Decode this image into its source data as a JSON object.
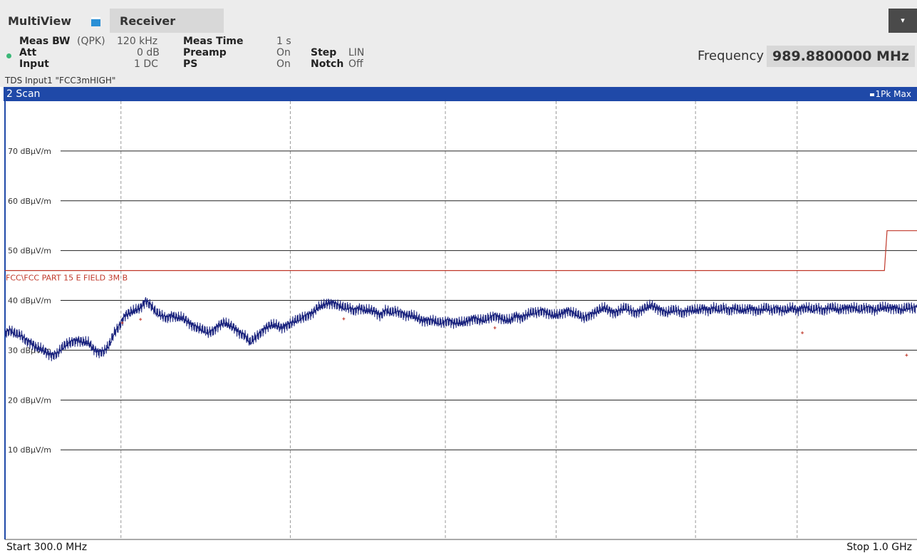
{
  "header": {
    "app_title": "MultiView",
    "tab_label": "Receiver",
    "dropdown_glyph": "▾"
  },
  "params": {
    "meas_bw_label": "Meas BW",
    "meas_bw_mode": "(QPK)",
    "meas_bw_value": "120 kHz",
    "meas_time_label": "Meas Time",
    "meas_time_value": "1 s",
    "att_label": "Att",
    "att_value": "0 dB",
    "preamp_label": "Preamp",
    "preamp_value": "On",
    "step_label": "Step",
    "step_value": "LIN",
    "input_label": "Input",
    "input_value": "1 DC",
    "ps_label": "PS",
    "ps_value": "On",
    "notch_label": "Notch",
    "notch_value": "Off",
    "tds_text": "TDS Input1 \"FCC3mHIGH\""
  },
  "frequency": {
    "label": "Frequency",
    "value": "989.8800000 MHz"
  },
  "window": {
    "title": "2 Scan",
    "trace_legend": "1Pk Max"
  },
  "colors": {
    "trace": "#1a237e",
    "limit_line": "#c0392b",
    "marker": "#c0392b",
    "window_header": "#1f49a8",
    "status_dot": "#3cb878"
  },
  "chart_data": {
    "type": "line",
    "y_unit": "dBµV/m",
    "ylim": [
      -8,
      80
    ],
    "xlim": [
      300,
      1000
    ],
    "y_ticks": [
      {
        "value": 70,
        "label": "70 dBµV/m"
      },
      {
        "value": 60,
        "label": "60 dBµV/m"
      },
      {
        "value": 50,
        "label": "50 dBµV/m"
      },
      {
        "value": 40,
        "label": "40 dBµV/m"
      },
      {
        "value": 30,
        "label": "30 dBµV/m"
      },
      {
        "value": 20,
        "label": "20 dBµV/m"
      },
      {
        "value": 10,
        "label": "10 dBµV/m"
      }
    ],
    "x_start_label": "Start 300.0 MHz",
    "x_stop_label": "Stop 1.0 GHz",
    "grid": true,
    "limit_line": {
      "name": "FCC\\FCC PART 15 E FIELD 3M B",
      "points": [
        [
          300,
          46
        ],
        [
          975,
          46
        ],
        [
          977,
          54
        ],
        [
          1000,
          54
        ]
      ]
    },
    "series": [
      {
        "trace": [
          [
            300,
            33.5
          ],
          [
            304,
            34.0
          ],
          [
            308,
            33.2
          ],
          [
            312,
            33.0
          ],
          [
            316,
            32.0
          ],
          [
            320,
            31.5
          ],
          [
            324,
            30.5
          ],
          [
            328,
            30.2
          ],
          [
            332,
            29.5
          ],
          [
            336,
            29.0
          ],
          [
            340,
            29.3
          ],
          [
            344,
            30.5
          ],
          [
            348,
            31.3
          ],
          [
            352,
            31.8
          ],
          [
            356,
            32.0
          ],
          [
            360,
            31.6
          ],
          [
            364,
            31.5
          ],
          [
            368,
            30.2
          ],
          [
            372,
            29.6
          ],
          [
            376,
            29.8
          ],
          [
            380,
            31.0
          ],
          [
            384,
            33.5
          ],
          [
            388,
            35.0
          ],
          [
            392,
            37.0
          ],
          [
            396,
            37.5
          ],
          [
            400,
            38.0
          ],
          [
            404,
            38.5
          ],
          [
            408,
            40.0
          ],
          [
            412,
            39.0
          ],
          [
            416,
            37.5
          ],
          [
            420,
            37.0
          ],
          [
            424,
            36.5
          ],
          [
            428,
            37.0
          ],
          [
            432,
            36.5
          ],
          [
            436,
            36.5
          ],
          [
            440,
            35.8
          ],
          [
            444,
            35.0
          ],
          [
            448,
            34.5
          ],
          [
            452,
            34.0
          ],
          [
            456,
            33.5
          ],
          [
            460,
            34.0
          ],
          [
            464,
            35.0
          ],
          [
            468,
            35.5
          ],
          [
            472,
            35.0
          ],
          [
            476,
            34.5
          ],
          [
            480,
            33.5
          ],
          [
            484,
            33.0
          ],
          [
            488,
            31.5
          ],
          [
            492,
            32.5
          ],
          [
            496,
            33.5
          ],
          [
            500,
            34.5
          ],
          [
            504,
            35.0
          ],
          [
            508,
            35.0
          ],
          [
            512,
            34.5
          ],
          [
            516,
            35.0
          ],
          [
            520,
            35.5
          ],
          [
            524,
            36.0
          ],
          [
            528,
            36.5
          ],
          [
            532,
            37.0
          ],
          [
            536,
            37.5
          ],
          [
            540,
            38.5
          ],
          [
            544,
            39.0
          ],
          [
            548,
            39.5
          ],
          [
            552,
            39.5
          ],
          [
            556,
            39.0
          ],
          [
            560,
            38.5
          ],
          [
            564,
            38.5
          ],
          [
            568,
            38.0
          ],
          [
            572,
            38.5
          ],
          [
            576,
            38.0
          ],
          [
            580,
            38.0
          ],
          [
            584,
            37.8
          ],
          [
            588,
            37.0
          ],
          [
            592,
            38.0
          ],
          [
            596,
            37.5
          ],
          [
            600,
            37.8
          ],
          [
            604,
            37.5
          ],
          [
            608,
            37.0
          ],
          [
            612,
            37.0
          ],
          [
            616,
            36.5
          ],
          [
            620,
            36.0
          ],
          [
            624,
            36.0
          ],
          [
            628,
            36.0
          ],
          [
            632,
            35.5
          ],
          [
            636,
            35.5
          ],
          [
            640,
            36.0
          ],
          [
            644,
            35.5
          ],
          [
            648,
            35.5
          ],
          [
            652,
            35.5
          ],
          [
            656,
            36.0
          ],
          [
            660,
            36.5
          ],
          [
            664,
            36.0
          ],
          [
            668,
            36.0
          ],
          [
            672,
            36.5
          ],
          [
            676,
            37.0
          ],
          [
            680,
            36.5
          ],
          [
            684,
            36.0
          ],
          [
            688,
            36.0
          ],
          [
            692,
            37.0
          ],
          [
            696,
            36.5
          ],
          [
            700,
            37.0
          ],
          [
            704,
            37.5
          ],
          [
            708,
            37.5
          ],
          [
            712,
            38.0
          ],
          [
            716,
            37.5
          ],
          [
            720,
            37.0
          ],
          [
            724,
            37.0
          ],
          [
            728,
            37.5
          ],
          [
            732,
            38.0
          ],
          [
            736,
            37.5
          ],
          [
            740,
            37.0
          ],
          [
            744,
            36.5
          ],
          [
            748,
            37.0
          ],
          [
            752,
            37.5
          ],
          [
            756,
            38.0
          ],
          [
            760,
            38.5
          ],
          [
            764,
            38.0
          ],
          [
            768,
            37.5
          ],
          [
            772,
            38.0
          ],
          [
            776,
            38.5
          ],
          [
            780,
            38.0
          ],
          [
            784,
            37.5
          ],
          [
            788,
            38.0
          ],
          [
            792,
            38.5
          ],
          [
            796,
            39.0
          ],
          [
            800,
            38.5
          ],
          [
            804,
            38.0
          ],
          [
            808,
            37.5
          ],
          [
            812,
            38.0
          ],
          [
            816,
            38.0
          ],
          [
            820,
            37.5
          ],
          [
            824,
            38.0
          ],
          [
            828,
            38.0
          ],
          [
            832,
            38.0
          ],
          [
            836,
            38.5
          ],
          [
            840,
            38.0
          ],
          [
            844,
            38.5
          ],
          [
            848,
            38.0
          ],
          [
            852,
            38.5
          ],
          [
            856,
            38.0
          ],
          [
            860,
            38.5
          ],
          [
            864,
            38.0
          ],
          [
            868,
            38.0
          ],
          [
            872,
            38.5
          ],
          [
            876,
            38.0
          ],
          [
            880,
            38.0
          ],
          [
            884,
            38.5
          ],
          [
            888,
            38.0
          ],
          [
            892,
            38.5
          ],
          [
            896,
            38.0
          ],
          [
            900,
            38.0
          ],
          [
            904,
            38.5
          ],
          [
            908,
            38.0
          ],
          [
            912,
            38.5
          ],
          [
            916,
            38.5
          ],
          [
            920,
            38.0
          ],
          [
            924,
            38.5
          ],
          [
            928,
            38.0
          ],
          [
            932,
            38.5
          ],
          [
            936,
            38.5
          ],
          [
            940,
            38.0
          ],
          [
            944,
            38.5
          ],
          [
            948,
            38.5
          ],
          [
            952,
            38.5
          ],
          [
            956,
            38.0
          ],
          [
            960,
            38.5
          ],
          [
            964,
            38.5
          ],
          [
            968,
            38.0
          ],
          [
            972,
            38.5
          ],
          [
            976,
            38.5
          ],
          [
            980,
            38.5
          ],
          [
            984,
            38.5
          ],
          [
            988,
            38.0
          ],
          [
            992,
            38.5
          ],
          [
            996,
            38.5
          ],
          [
            1000,
            38.5
          ]
        ]
      }
    ],
    "markers": [
      [
        390,
        35.5
      ],
      [
        404,
        36.2
      ],
      [
        560,
        36.3
      ],
      [
        676,
        34.5
      ],
      [
        912,
        33.5
      ],
      [
        992,
        29.0
      ]
    ],
    "v_grid": [
      389,
      519,
      638,
      723,
      830,
      908,
      1065,
      1129,
      1160,
      1217
    ]
  }
}
